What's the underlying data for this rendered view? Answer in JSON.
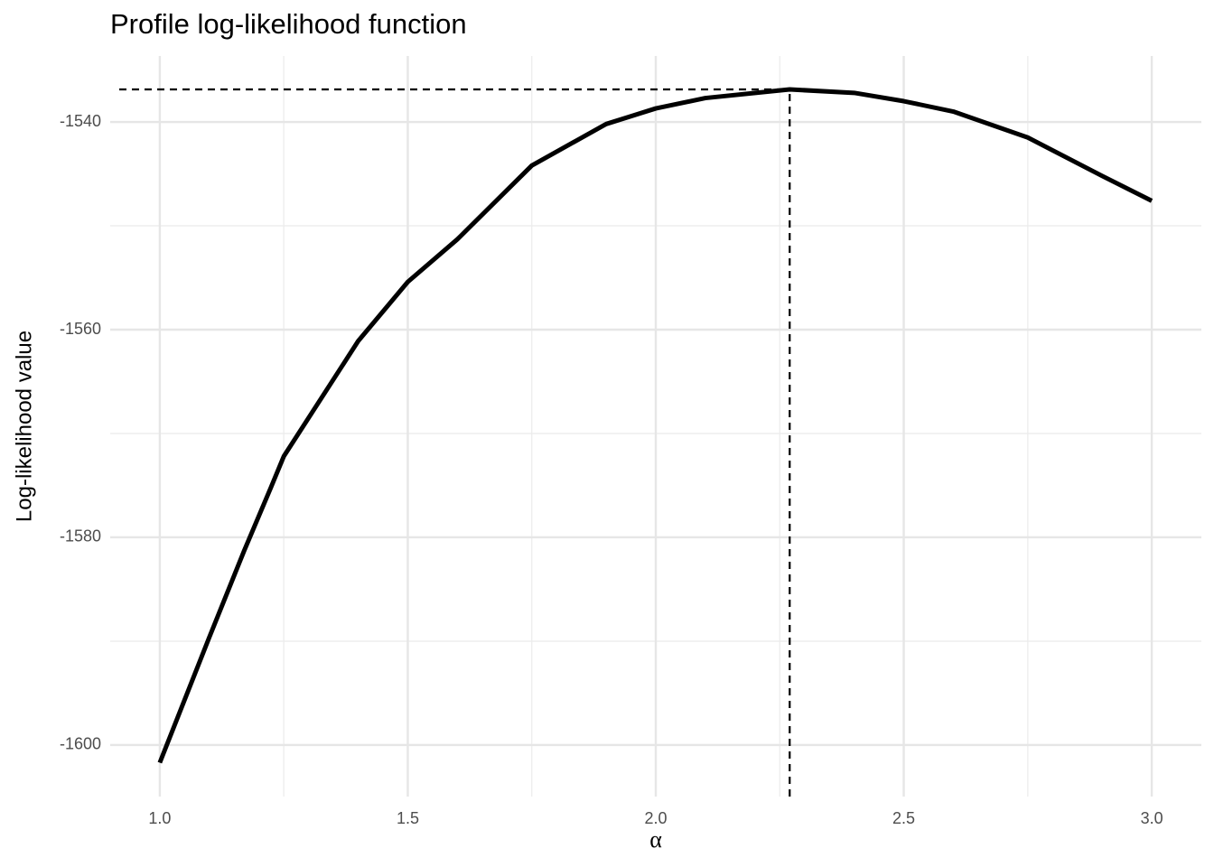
{
  "chart_data": {
    "type": "line",
    "title": "Profile log-likelihood function",
    "x_label": "α",
    "y_label": "Log-likelihood value",
    "x": [
      1.0,
      1.1,
      1.17,
      1.224,
      1.25,
      1.4,
      1.5,
      1.6,
      1.75,
      1.9,
      2.0,
      2.1,
      2.27,
      2.4,
      2.5,
      2.6,
      2.75,
      2.9,
      3.0
    ],
    "series": [
      {
        "name": "profile",
        "color": "#000000",
        "values": [
          -1601.7,
          -1589.6,
          -1581.3,
          -1575.2,
          -1572.2,
          -1561.1,
          -1555.4,
          -1551.3,
          -1544.2,
          -1540.2,
          -1538.7,
          -1537.7,
          -1536.87,
          -1537.2,
          -1538.0,
          -1539.0,
          -1541.5,
          -1545.2,
          -1547.6
        ]
      }
    ],
    "mle": {
      "x": 2.27,
      "y": -1536.87
    },
    "xlim": [
      0.9,
      3.1
    ],
    "ylim": [
      -1604.96,
      -1533.65
    ],
    "xticks": [
      {
        "value": 1,
        "label": "1.0"
      },
      1.5,
      {
        "value": 2,
        "label": "2.0"
      },
      2.5,
      {
        "value": 3,
        "label": "3.0"
      }
    ],
    "yticks": [
      -1600,
      -1580,
      -1560,
      -1540
    ],
    "xticks_minor": [
      1.25,
      1.75,
      2.25,
      2.75
    ],
    "yticks_minor": [
      -1590,
      -1570,
      -1550
    ],
    "grid": true
  }
}
